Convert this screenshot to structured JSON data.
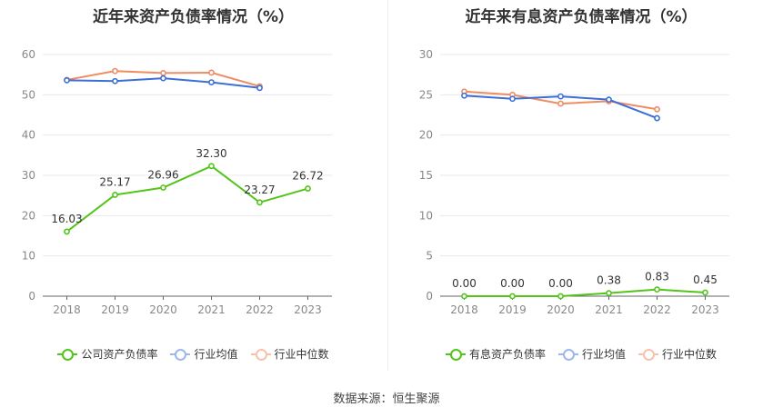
{
  "source_text": "数据来源：恒生聚源",
  "chart_data": [
    {
      "type": "line",
      "title": "近年来资产负债率情况（%）",
      "categories": [
        "2018",
        "2019",
        "2020",
        "2021",
        "2022",
        "2023"
      ],
      "ylim": [
        0,
        60
      ],
      "yticks": [
        "0",
        "10",
        "20",
        "30",
        "40",
        "50",
        "60"
      ],
      "grid": true,
      "legend_position": "bottom",
      "series": [
        {
          "name": "公司资产负债率",
          "color": "#52c41a",
          "values": [
            16.03,
            25.17,
            26.96,
            32.3,
            23.27,
            26.72
          ],
          "labels": [
            "16.03",
            "25.17",
            "26.96",
            "32.30",
            "23.27",
            "26.72"
          ]
        },
        {
          "name": "行业均值",
          "color": "#3b6fd6",
          "values": [
            53.6,
            53.4,
            54.1,
            53.1,
            51.7,
            null
          ]
        },
        {
          "name": "行业中位数",
          "color": "#f08c64",
          "values": [
            53.7,
            55.9,
            55.4,
            55.5,
            52.1,
            null
          ]
        }
      ]
    },
    {
      "type": "line",
      "title": "近年来有息资产负债率情况（%）",
      "categories": [
        "2018",
        "2019",
        "2020",
        "2021",
        "2022",
        "2023"
      ],
      "ylim": [
        0,
        30
      ],
      "yticks": [
        "0",
        "5",
        "10",
        "15",
        "20",
        "25",
        "30"
      ],
      "grid": true,
      "legend_position": "bottom",
      "series": [
        {
          "name": "有息资产负债率",
          "color": "#52c41a",
          "values": [
            0.0,
            0.0,
            0.0,
            0.38,
            0.83,
            0.45
          ],
          "labels": [
            "0.00",
            "0.00",
            "0.00",
            "0.38",
            "0.83",
            "0.45"
          ]
        },
        {
          "name": "行业均值",
          "color": "#3b6fd6",
          "values": [
            24.9,
            24.5,
            24.8,
            24.4,
            22.1,
            null
          ]
        },
        {
          "name": "行业中位数",
          "color": "#f08c64",
          "values": [
            25.4,
            25.0,
            23.9,
            24.2,
            23.2,
            null
          ]
        }
      ]
    }
  ]
}
